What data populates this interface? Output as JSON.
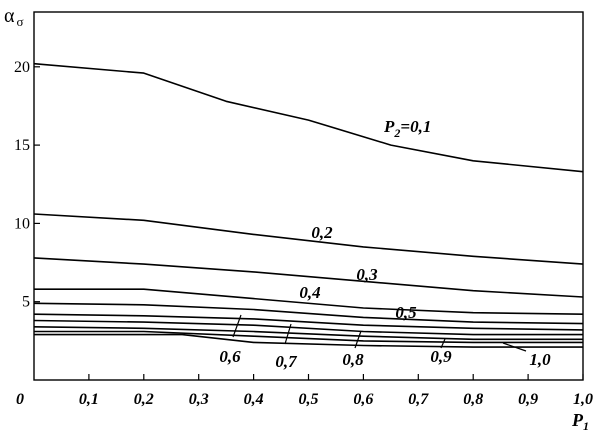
{
  "chart_data": {
    "type": "line",
    "ylabel": "α",
    "ylabel_sub": "σ",
    "xlabel": "P",
    "xlabel_sub": "1",
    "xlim": [
      0,
      1
    ],
    "ylim": [
      0,
      23.5
    ],
    "grid": false,
    "x_ticks": [
      "0,1",
      "0,2",
      "0,3",
      "0,4",
      "0,5",
      "0,6",
      "0,7",
      "0,8",
      "0,9",
      "1,0"
    ],
    "y_ticks": [
      "5",
      "10",
      "15",
      "20"
    ],
    "origin_label": "0",
    "series": [
      {
        "name": "P₂=0,1",
        "label_parts": {
          "main": "P",
          "sub": "2",
          "rest": "=0,1"
        },
        "x": [
          0,
          0.2,
          0.35,
          0.5,
          0.65,
          0.8,
          1.0
        ],
        "y": [
          20.2,
          19.6,
          17.8,
          16.6,
          15.0,
          14.0,
          13.3
        ]
      },
      {
        "name": "0,2",
        "x": [
          0,
          0.2,
          0.4,
          0.6,
          0.8,
          1.0
        ],
        "y": [
          10.6,
          10.2,
          9.3,
          8.5,
          7.9,
          7.4
        ]
      },
      {
        "name": "0,3",
        "x": [
          0,
          0.2,
          0.4,
          0.6,
          0.8,
          1.0
        ],
        "y": [
          7.8,
          7.4,
          6.9,
          6.3,
          5.7,
          5.3
        ]
      },
      {
        "name": "0,4",
        "x": [
          0,
          0.2,
          0.4,
          0.6,
          0.8,
          1.0
        ],
        "y": [
          5.8,
          5.8,
          5.2,
          4.6,
          4.3,
          4.2
        ]
      },
      {
        "name": "0,5",
        "x": [
          0,
          0.2,
          0.4,
          0.6,
          0.8,
          1.0
        ],
        "y": [
          4.9,
          4.8,
          4.5,
          4.0,
          3.7,
          3.6
        ]
      },
      {
        "name": "0,6",
        "x": [
          0,
          0.2,
          0.4,
          0.6,
          0.8,
          1.0
        ],
        "y": [
          4.2,
          4.1,
          3.9,
          3.5,
          3.3,
          3.2
        ]
      },
      {
        "name": "0,7",
        "x": [
          0,
          0.2,
          0.4,
          0.6,
          0.8,
          1.0
        ],
        "y": [
          3.8,
          3.7,
          3.5,
          3.1,
          2.9,
          2.9
        ]
      },
      {
        "name": "0,8",
        "x": [
          0,
          0.2,
          0.4,
          0.6,
          0.8,
          1.0
        ],
        "y": [
          3.4,
          3.3,
          3.1,
          2.8,
          2.6,
          2.6
        ]
      },
      {
        "name": "0,9",
        "x": [
          0,
          0.2,
          0.4,
          0.6,
          0.8,
          1.0
        ],
        "y": [
          3.1,
          3.1,
          2.8,
          2.5,
          2.4,
          2.4
        ]
      },
      {
        "name": "1,0",
        "x": [
          0,
          0.2,
          0.27,
          0.4,
          0.6,
          0.8,
          1.0
        ],
        "y": [
          2.9,
          2.9,
          2.9,
          2.4,
          2.2,
          2.1,
          2.1
        ]
      }
    ]
  }
}
